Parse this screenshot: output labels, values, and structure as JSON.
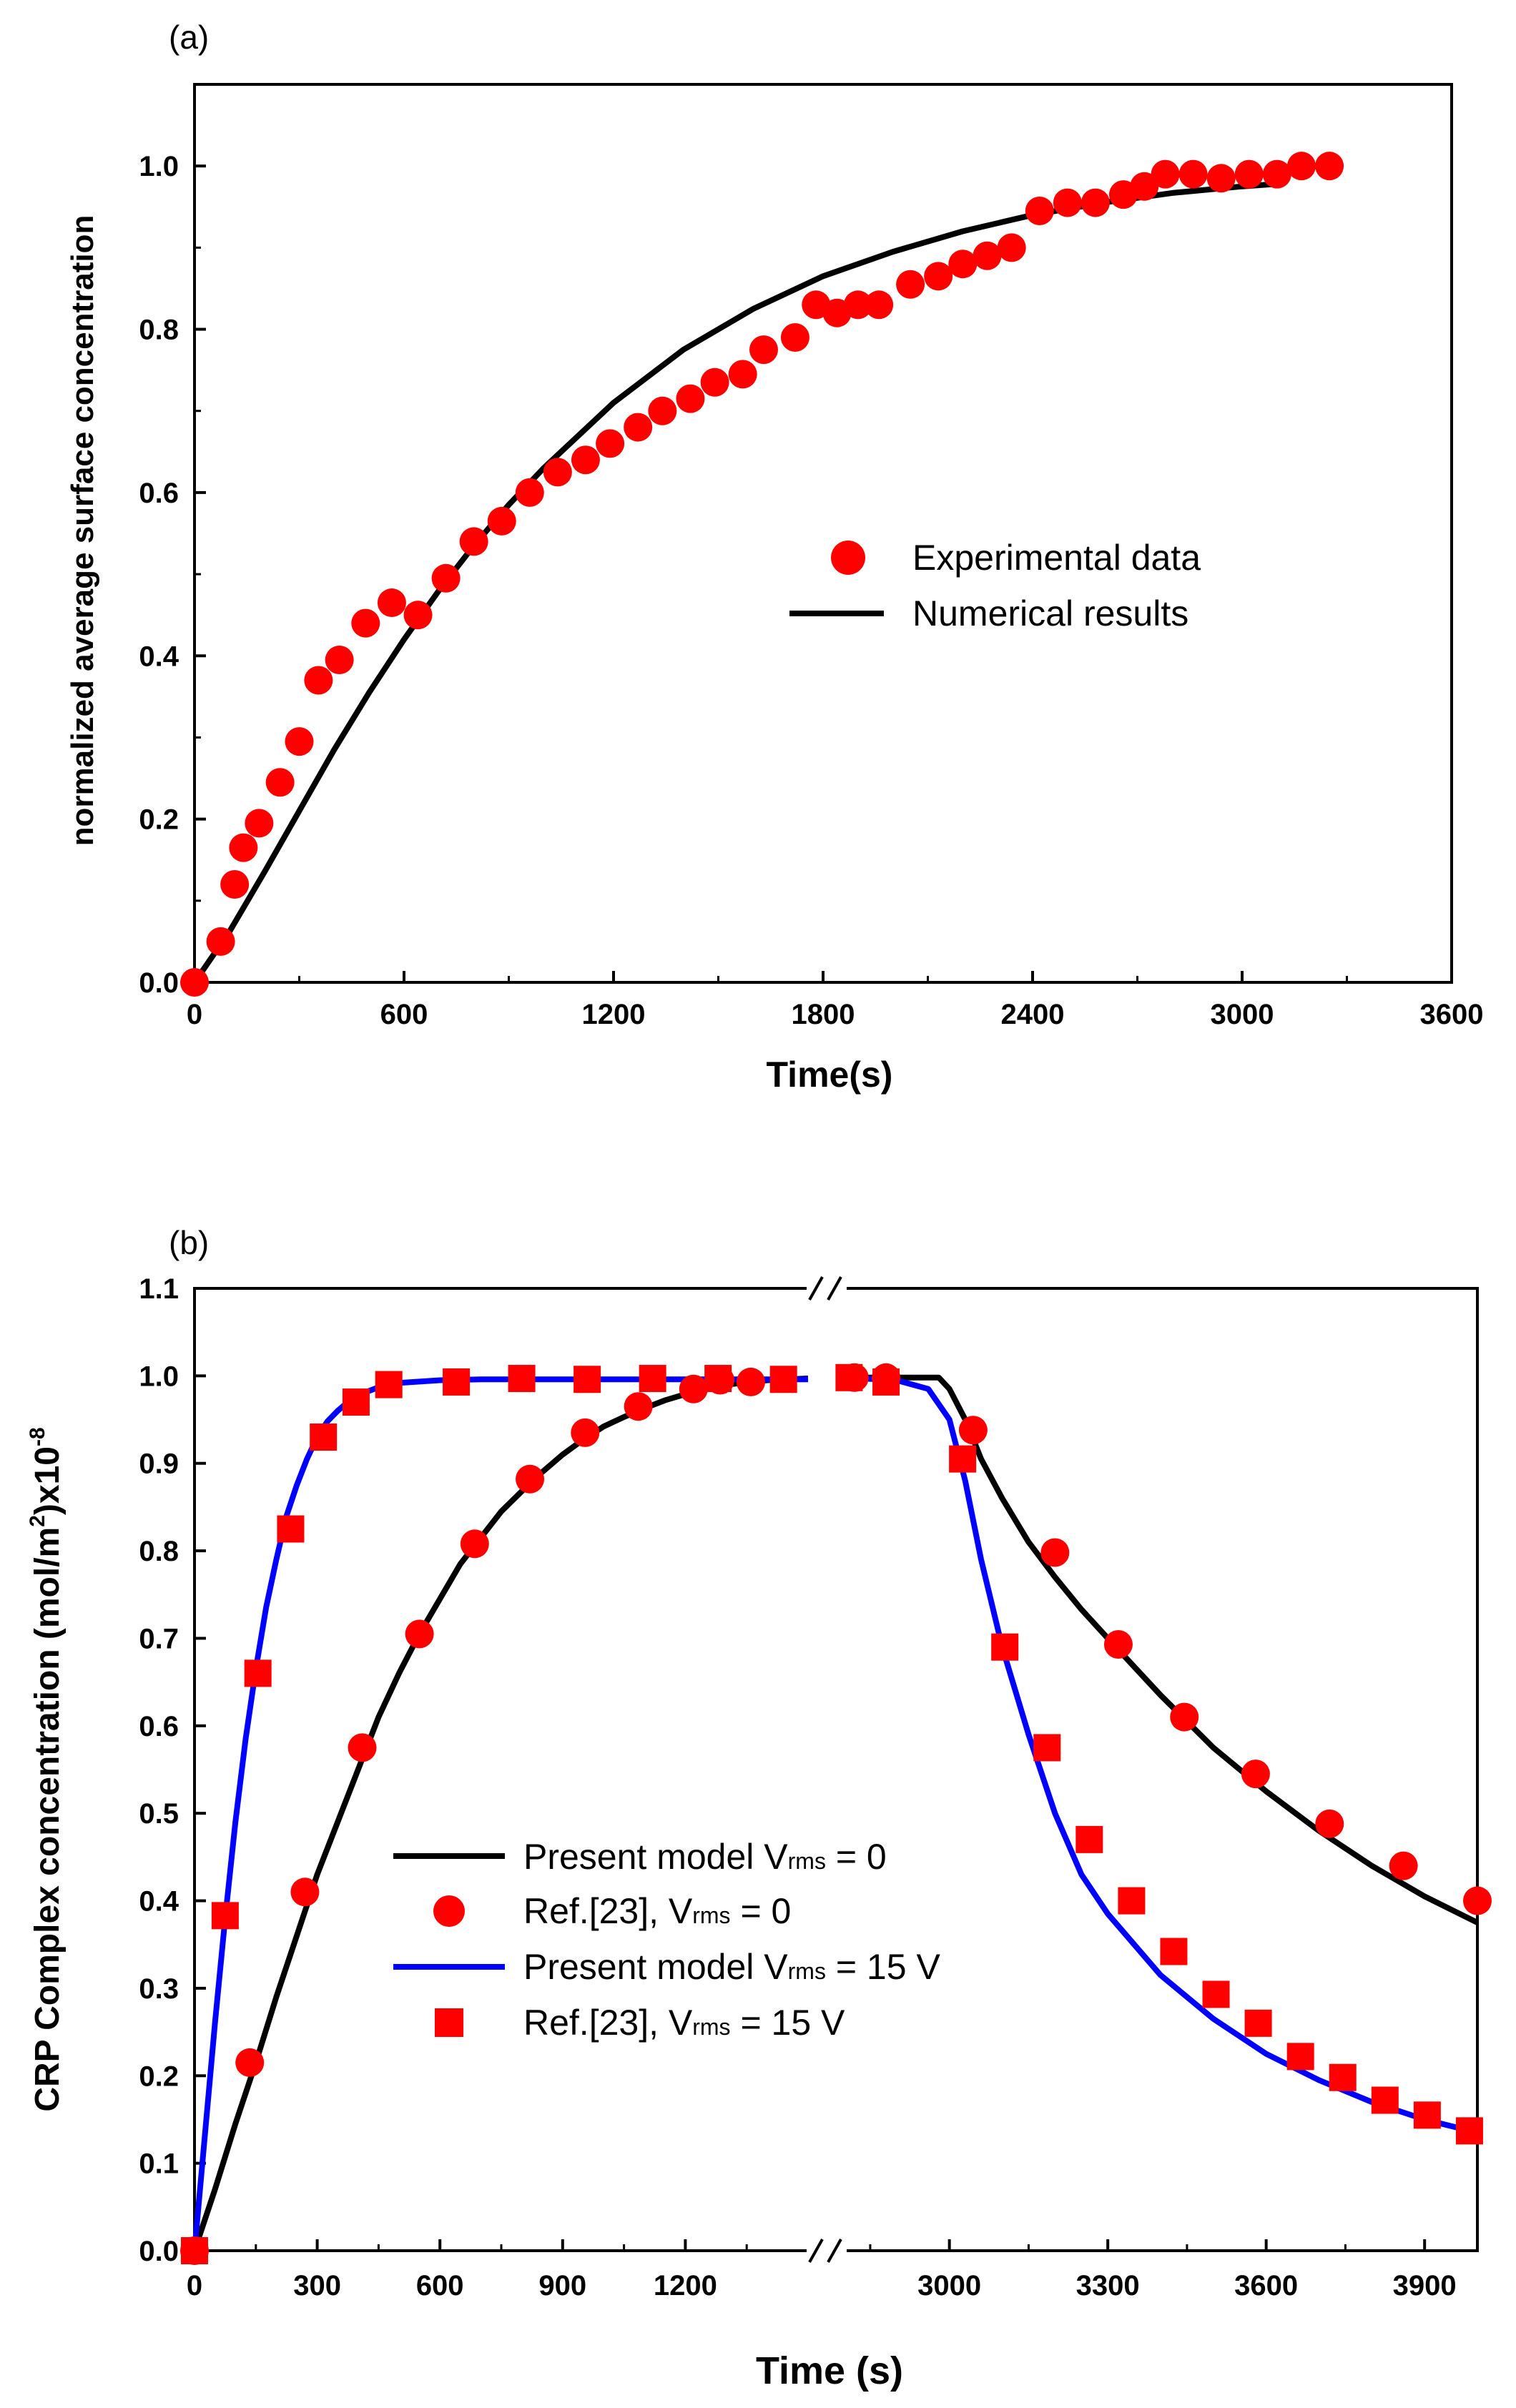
{
  "chart_data": [
    {
      "panel_label": "(a)",
      "type": "scatter",
      "xlabel": "Time(s)",
      "ylabel": "normalized average surface concentration",
      "xlim": [
        0,
        3600
      ],
      "ylim": [
        0,
        1.1
      ],
      "xticks": [
        0,
        600,
        1200,
        1800,
        2400,
        3000,
        3600
      ],
      "yticks": [
        0.0,
        0.2,
        0.4,
        0.6,
        0.8,
        1.0
      ],
      "xtick_labels": [
        "0",
        "600",
        "1200",
        "1800",
        "2400",
        "3000",
        "3600"
      ],
      "ytick_labels": [
        "0.0",
        "0.2",
        "0.4",
        "0.6",
        "0.8",
        "1.0"
      ],
      "legend_position": "center-right",
      "series": [
        {
          "name": "Experimental data",
          "kind": "markers",
          "marker": "circle",
          "color": "#ff0000",
          "x": [
            0,
            75,
            115,
            140,
            185,
            245,
            300,
            355,
            415,
            490,
            565,
            640,
            720,
            800,
            880,
            960,
            1040,
            1120,
            1190,
            1270,
            1340,
            1420,
            1490,
            1570,
            1630,
            1720,
            1780,
            1840,
            1900,
            1960,
            2050,
            2130,
            2200,
            2270,
            2340,
            2420,
            2500,
            2580,
            2660,
            2720,
            2780,
            2860,
            2940,
            3020,
            3100,
            3170,
            3250
          ],
          "y": [
            0.0,
            0.05,
            0.12,
            0.165,
            0.195,
            0.245,
            0.295,
            0.37,
            0.395,
            0.44,
            0.465,
            0.45,
            0.495,
            0.54,
            0.565,
            0.6,
            0.625,
            0.64,
            0.66,
            0.68,
            0.7,
            0.715,
            0.735,
            0.745,
            0.775,
            0.79,
            0.83,
            0.82,
            0.83,
            0.83,
            0.855,
            0.865,
            0.88,
            0.89,
            0.9,
            0.945,
            0.955,
            0.955,
            0.965,
            0.975,
            0.99,
            0.99,
            0.985,
            0.99,
            0.99,
            1.0,
            1.0
          ]
        },
        {
          "name": "Numerical results",
          "kind": "line",
          "color": "#000000",
          "x": [
            0,
            100,
            200,
            300,
            400,
            500,
            600,
            700,
            800,
            900,
            1000,
            1200,
            1400,
            1600,
            1800,
            2000,
            2200,
            2400,
            2600,
            2800,
            3000,
            3100
          ],
          "y": [
            0.0,
            0.062,
            0.135,
            0.21,
            0.285,
            0.355,
            0.42,
            0.48,
            0.535,
            0.585,
            0.63,
            0.71,
            0.775,
            0.825,
            0.865,
            0.895,
            0.92,
            0.94,
            0.955,
            0.967,
            0.975,
            0.978
          ]
        }
      ]
    },
    {
      "panel_label": "(b)",
      "type": "scatter",
      "xlabel": "Time (s)",
      "ylabel_main": "CRP Complex concentration (mol/m",
      "ylabel_sup1": "2",
      "ylabel_mid": ")x10",
      "ylabel_sup2": "-8",
      "ylim": [
        0,
        1.1
      ],
      "yticks": [
        0.0,
        0.1,
        0.2,
        0.3,
        0.4,
        0.5,
        0.6,
        0.7,
        0.8,
        0.9,
        1.0,
        1.1
      ],
      "ytick_labels": [
        "0.0",
        "0.1",
        "0.2",
        "0.3",
        "0.4",
        "0.5",
        "0.6",
        "0.7",
        "0.8",
        "0.9",
        "1.0",
        "1.1"
      ],
      "x_axis_break": true,
      "x_segments": [
        {
          "xlim": [
            0,
            1500
          ],
          "ticks": [
            0,
            300,
            600,
            900,
            1200
          ],
          "tick_labels": [
            "0",
            "300",
            "600",
            "900",
            "1200"
          ]
        },
        {
          "xlim": [
            2800,
            4000
          ],
          "ticks": [
            3000,
            3300,
            3600,
            3900
          ],
          "tick_labels": [
            "3000",
            "3300",
            "3600",
            "3900"
          ]
        }
      ],
      "legend_position": "lower-left",
      "legend": [
        {
          "label": "Present model V",
          "sub": "rms",
          "tail": " = 0",
          "kind": "line",
          "color": "#000000"
        },
        {
          "label": "Ref.[23], V",
          "sub": "rms",
          "tail": " = 0",
          "kind": "marker",
          "marker": "circle",
          "color": "#ff0000"
        },
        {
          "label": "Present model V",
          "sub": "rms",
          "tail": " = 15 V",
          "kind": "line",
          "color": "#0000ff"
        },
        {
          "label": "Ref.[23], V",
          "sub": "rms",
          "tail": " = 15 V",
          "kind": "marker",
          "marker": "square",
          "color": "#ff0000"
        }
      ],
      "series": [
        {
          "legend_index": 0,
          "kind": "line",
          "color": "#000000",
          "x": [
            0,
            50,
            100,
            150,
            200,
            250,
            300,
            350,
            400,
            450,
            500,
            550,
            600,
            650,
            700,
            750,
            800,
            850,
            900,
            950,
            1000,
            1050,
            1100,
            1150,
            1200,
            1250,
            1300,
            1400,
            1500,
            2800,
            2900,
            2980,
            3000,
            3030,
            3060,
            3100,
            3150,
            3200,
            3250,
            3300,
            3400,
            3500,
            3600,
            3700,
            3800,
            3900,
            4000
          ],
          "y": [
            0.0,
            0.07,
            0.145,
            0.215,
            0.29,
            0.36,
            0.43,
            0.49,
            0.55,
            0.61,
            0.66,
            0.705,
            0.745,
            0.785,
            0.815,
            0.845,
            0.868,
            0.89,
            0.91,
            0.927,
            0.942,
            0.953,
            0.963,
            0.972,
            0.979,
            0.985,
            0.99,
            0.995,
            0.997,
            0.998,
            0.998,
            0.998,
            0.985,
            0.95,
            0.905,
            0.86,
            0.81,
            0.77,
            0.733,
            0.7,
            0.635,
            0.575,
            0.525,
            0.48,
            0.44,
            0.405,
            0.375
          ]
        },
        {
          "legend_index": 1,
          "kind": "markers",
          "marker": "circle",
          "color": "#ff0000",
          "x": [
            0,
            135,
            270,
            410,
            550,
            685,
            820,
            955,
            1085,
            1220,
            1285,
            1360,
            2820,
            2880,
            3045,
            3200,
            3320,
            3445,
            3580,
            3720,
            3860,
            4000
          ],
          "y": [
            0.0,
            0.215,
            0.41,
            0.575,
            0.705,
            0.808,
            0.882,
            0.935,
            0.965,
            0.985,
            0.995,
            0.993,
            0.998,
            0.998,
            0.938,
            0.798,
            0.693,
            0.61,
            0.545,
            0.488,
            0.44,
            0.4
          ]
        },
        {
          "legend_index": 2,
          "kind": "line",
          "color": "#0000ff",
          "x": [
            0,
            25,
            50,
            75,
            100,
            125,
            150,
            175,
            200,
            225,
            250,
            275,
            300,
            325,
            350,
            375,
            400,
            450,
            500,
            600,
            700,
            800,
            1000,
            1200,
            1500,
            2800,
            2900,
            2960,
            3000,
            3030,
            3060,
            3100,
            3150,
            3200,
            3250,
            3300,
            3400,
            3500,
            3600,
            3700,
            3800,
            3900,
            4000
          ],
          "y": [
            0.0,
            0.13,
            0.26,
            0.38,
            0.49,
            0.585,
            0.665,
            0.735,
            0.79,
            0.84,
            0.875,
            0.905,
            0.93,
            0.948,
            0.96,
            0.97,
            0.978,
            0.987,
            0.992,
            0.995,
            0.996,
            0.996,
            0.996,
            0.996,
            0.996,
            0.998,
            0.995,
            0.985,
            0.95,
            0.88,
            0.79,
            0.69,
            0.59,
            0.5,
            0.43,
            0.385,
            0.315,
            0.265,
            0.225,
            0.195,
            0.17,
            0.15,
            0.135
          ]
        },
        {
          "legend_index": 3,
          "kind": "markers",
          "marker": "square",
          "color": "#ff0000",
          "x": [
            0,
            75,
            155,
            235,
            315,
            395,
            475,
            640,
            800,
            960,
            1120,
            1280,
            1440,
            2810,
            2880,
            3025,
            3105,
            3185,
            3265,
            3345,
            3425,
            3505,
            3585,
            3665,
            3745,
            3825,
            3905,
            3985
          ],
          "y": [
            0.0,
            0.383,
            0.66,
            0.825,
            0.93,
            0.97,
            0.99,
            0.993,
            0.997,
            0.996,
            0.997,
            0.997,
            0.996,
            0.998,
            0.993,
            0.905,
            0.69,
            0.575,
            0.47,
            0.4,
            0.342,
            0.293,
            0.26,
            0.222,
            0.198,
            0.172,
            0.155,
            0.137
          ]
        }
      ]
    }
  ]
}
